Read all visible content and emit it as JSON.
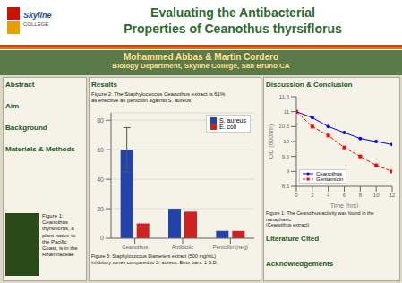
{
  "chart_data": [
    {
      "type": "bar",
      "title": [
        "Evaluating the Antibacterial",
        "Properties of Ceanothus thyrsiflorus"
      ],
      "subtitle": [
        "Mohammed Abbas & Martin Cordero",
        "Biology Department, Skyline College, San Bruno CA"
      ],
      "categories": [
        "Ceanothus",
        "Antibiotic",
        "Penicillin (neg)"
      ],
      "series": [
        {
          "name": "S. aureus",
          "color": "#2244aa",
          "values": [
            60,
            20,
            5
          ],
          "errors": [
            15,
            null,
            null
          ]
        },
        {
          "name": "E. coli",
          "color": "#cc2222",
          "values": [
            10,
            18,
            5
          ]
        }
      ],
      "ylim": [
        0,
        85
      ],
      "yticks": [
        0,
        20,
        40,
        60,
        80
      ],
      "grid": true,
      "legend": "upper right",
      "annotations": [
        "Skyline",
        "COLLEGE",
        "Abstract",
        "Aim",
        "Background",
        "Materials & Methods",
        "Figure 1:\nCeanothus\nthyrsiflorus, a\nplant native to\nthe Pacific\nCoast, is in the\nRhamnaceae",
        "Results",
        "Figure 2: The Staphylococcus Ceanothus extract is 61%\nas effective as penicillin against S. aureus.",
        "Figure 3: Staphylococcus Diameters extract (500 mg/mL)\ninhibitory zones compared to S. aureus. Error bars: 1 S.D."
      ]
    },
    {
      "type": "line",
      "x": [
        0,
        2,
        4,
        6,
        8,
        10,
        12
      ],
      "series": [
        {
          "name": "Ceanothus",
          "color": "#0000ff",
          "marker": "o",
          "line_style": "solid",
          "values": [
            11,
            10.8,
            10.5,
            10.3,
            10.1,
            10.0,
            9.9
          ]
        },
        {
          "name": "Gentamicin",
          "color": "#ff0000",
          "marker": "s",
          "line_style": "dashed",
          "values": [
            11,
            10.5,
            10.2,
            9.8,
            9.5,
            9.2,
            9.0
          ]
        }
      ],
      "xlabel": "Time (hrs)",
      "ylabel": "OD (600nm)",
      "xlim": [
        0,
        12
      ],
      "xticks": [
        0,
        2,
        4,
        6,
        8,
        10,
        12
      ],
      "ylim": [
        8.5,
        11.5
      ],
      "yticks": [
        8.5,
        9,
        9.5,
        10,
        10.5,
        11,
        11.5
      ],
      "grid": false,
      "legend": "lower left",
      "annotations": [
        "Discussion & Conclusion",
        "Figure 1: The Ceanothus activity was found in the nanaphasic\n(Ceanothus extract)",
        "Literature Cited",
        "Acknowledgements"
      ]
    }
  ]
}
